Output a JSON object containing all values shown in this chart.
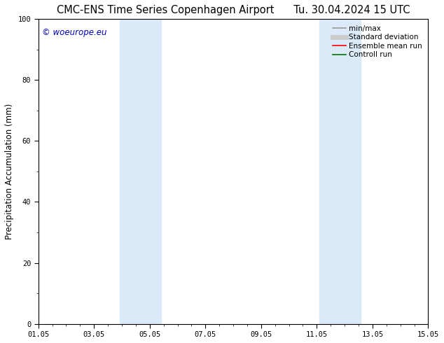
{
  "title_left": "CMC-ENS Time Series Copenhagen Airport",
  "title_right": "Tu. 30.04.2024 15 UTC",
  "ylabel": "Precipitation Accumulation (mm)",
  "ylim": [
    0,
    100
  ],
  "yticks": [
    0,
    20,
    40,
    60,
    80,
    100
  ],
  "xtick_positions": [
    1,
    3,
    5,
    7,
    9,
    11,
    13,
    15
  ],
  "xtick_labels": [
    "01.05",
    "03.05",
    "05.05",
    "07.05",
    "09.05",
    "11.05",
    "13.05",
    "15.05"
  ],
  "xlim": [
    1,
    15
  ],
  "background_color": "#ffffff",
  "plot_bg_color": "#ffffff",
  "watermark": "© woeurope.eu",
  "watermark_color": "#0000bb",
  "shaded_regions": [
    {
      "xmin": 3.917,
      "xmax": 4.583,
      "color": "#daeaf8"
    },
    {
      "xmin": 4.583,
      "xmax": 5.417,
      "color": "#daeaf8"
    },
    {
      "xmin": 11.083,
      "xmax": 11.583,
      "color": "#daeaf8"
    },
    {
      "xmin": 11.583,
      "xmax": 12.583,
      "color": "#daeaf8"
    }
  ],
  "legend_items": [
    {
      "label": "min/max",
      "color": "#999999",
      "lw": 1.2,
      "style": "solid"
    },
    {
      "label": "Standard deviation",
      "color": "#cccccc",
      "lw": 5,
      "style": "solid"
    },
    {
      "label": "Ensemble mean run",
      "color": "#ff0000",
      "lw": 1.2,
      "style": "solid"
    },
    {
      "label": "Controll run",
      "color": "#007700",
      "lw": 1.2,
      "style": "solid"
    }
  ],
  "title_fontsize": 10.5,
  "tick_fontsize": 7.5,
  "ylabel_fontsize": 8.5,
  "watermark_fontsize": 8.5,
  "legend_fontsize": 7.5
}
